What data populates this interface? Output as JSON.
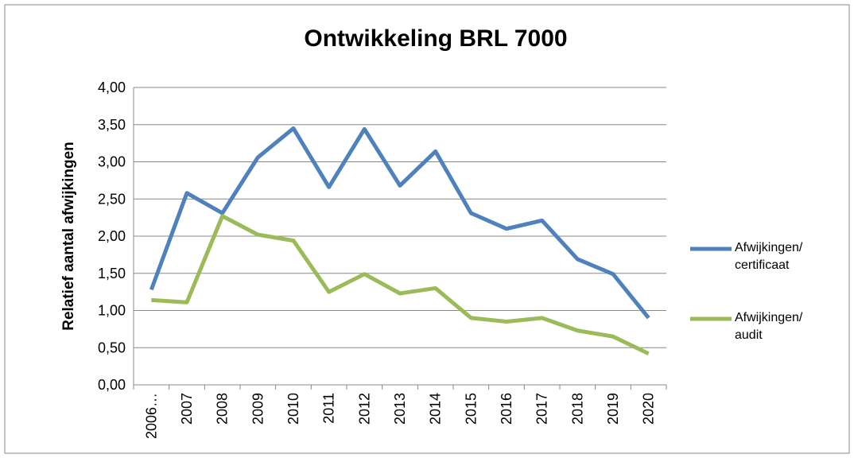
{
  "chart_data": {
    "type": "line",
    "title": "Ontwikkeling BRL 7000",
    "y_label": "Relatief aantal afwijkingen",
    "categories": [
      "2006…",
      "2007",
      "2008",
      "2009",
      "2010",
      "2011",
      "2012",
      "2013",
      "2014",
      "2015",
      "2016",
      "2017",
      "2018",
      "2019",
      "2020"
    ],
    "series": [
      {
        "name": "Afwijkingen/ certificaat",
        "color": "#4f81bd",
        "values": [
          1.28,
          2.58,
          2.31,
          3.06,
          3.45,
          2.66,
          3.44,
          2.68,
          3.14,
          2.31,
          2.1,
          2.21,
          1.69,
          1.49,
          0.9
        ]
      },
      {
        "name": "Afwijkingen/ audit",
        "color": "#9bbb59",
        "values": [
          1.14,
          1.11,
          2.27,
          2.02,
          1.94,
          1.25,
          1.49,
          1.23,
          1.3,
          0.9,
          0.85,
          0.9,
          0.73,
          0.65,
          0.42
        ]
      }
    ],
    "ylim": [
      0,
      4
    ],
    "yticks": [
      {
        "value": 0,
        "label": "0,00"
      },
      {
        "value": 0.5,
        "label": "0,50"
      },
      {
        "value": 1,
        "label": "1,00"
      },
      {
        "value": 1.5,
        "label": "1,50"
      },
      {
        "value": 2,
        "label": "2,00"
      },
      {
        "value": 2.5,
        "label": "2,50"
      },
      {
        "value": 3,
        "label": "3,00"
      },
      {
        "value": 3.5,
        "label": "3,50"
      },
      {
        "value": 4,
        "label": "4,00"
      }
    ],
    "grid": true,
    "legend": "right"
  }
}
